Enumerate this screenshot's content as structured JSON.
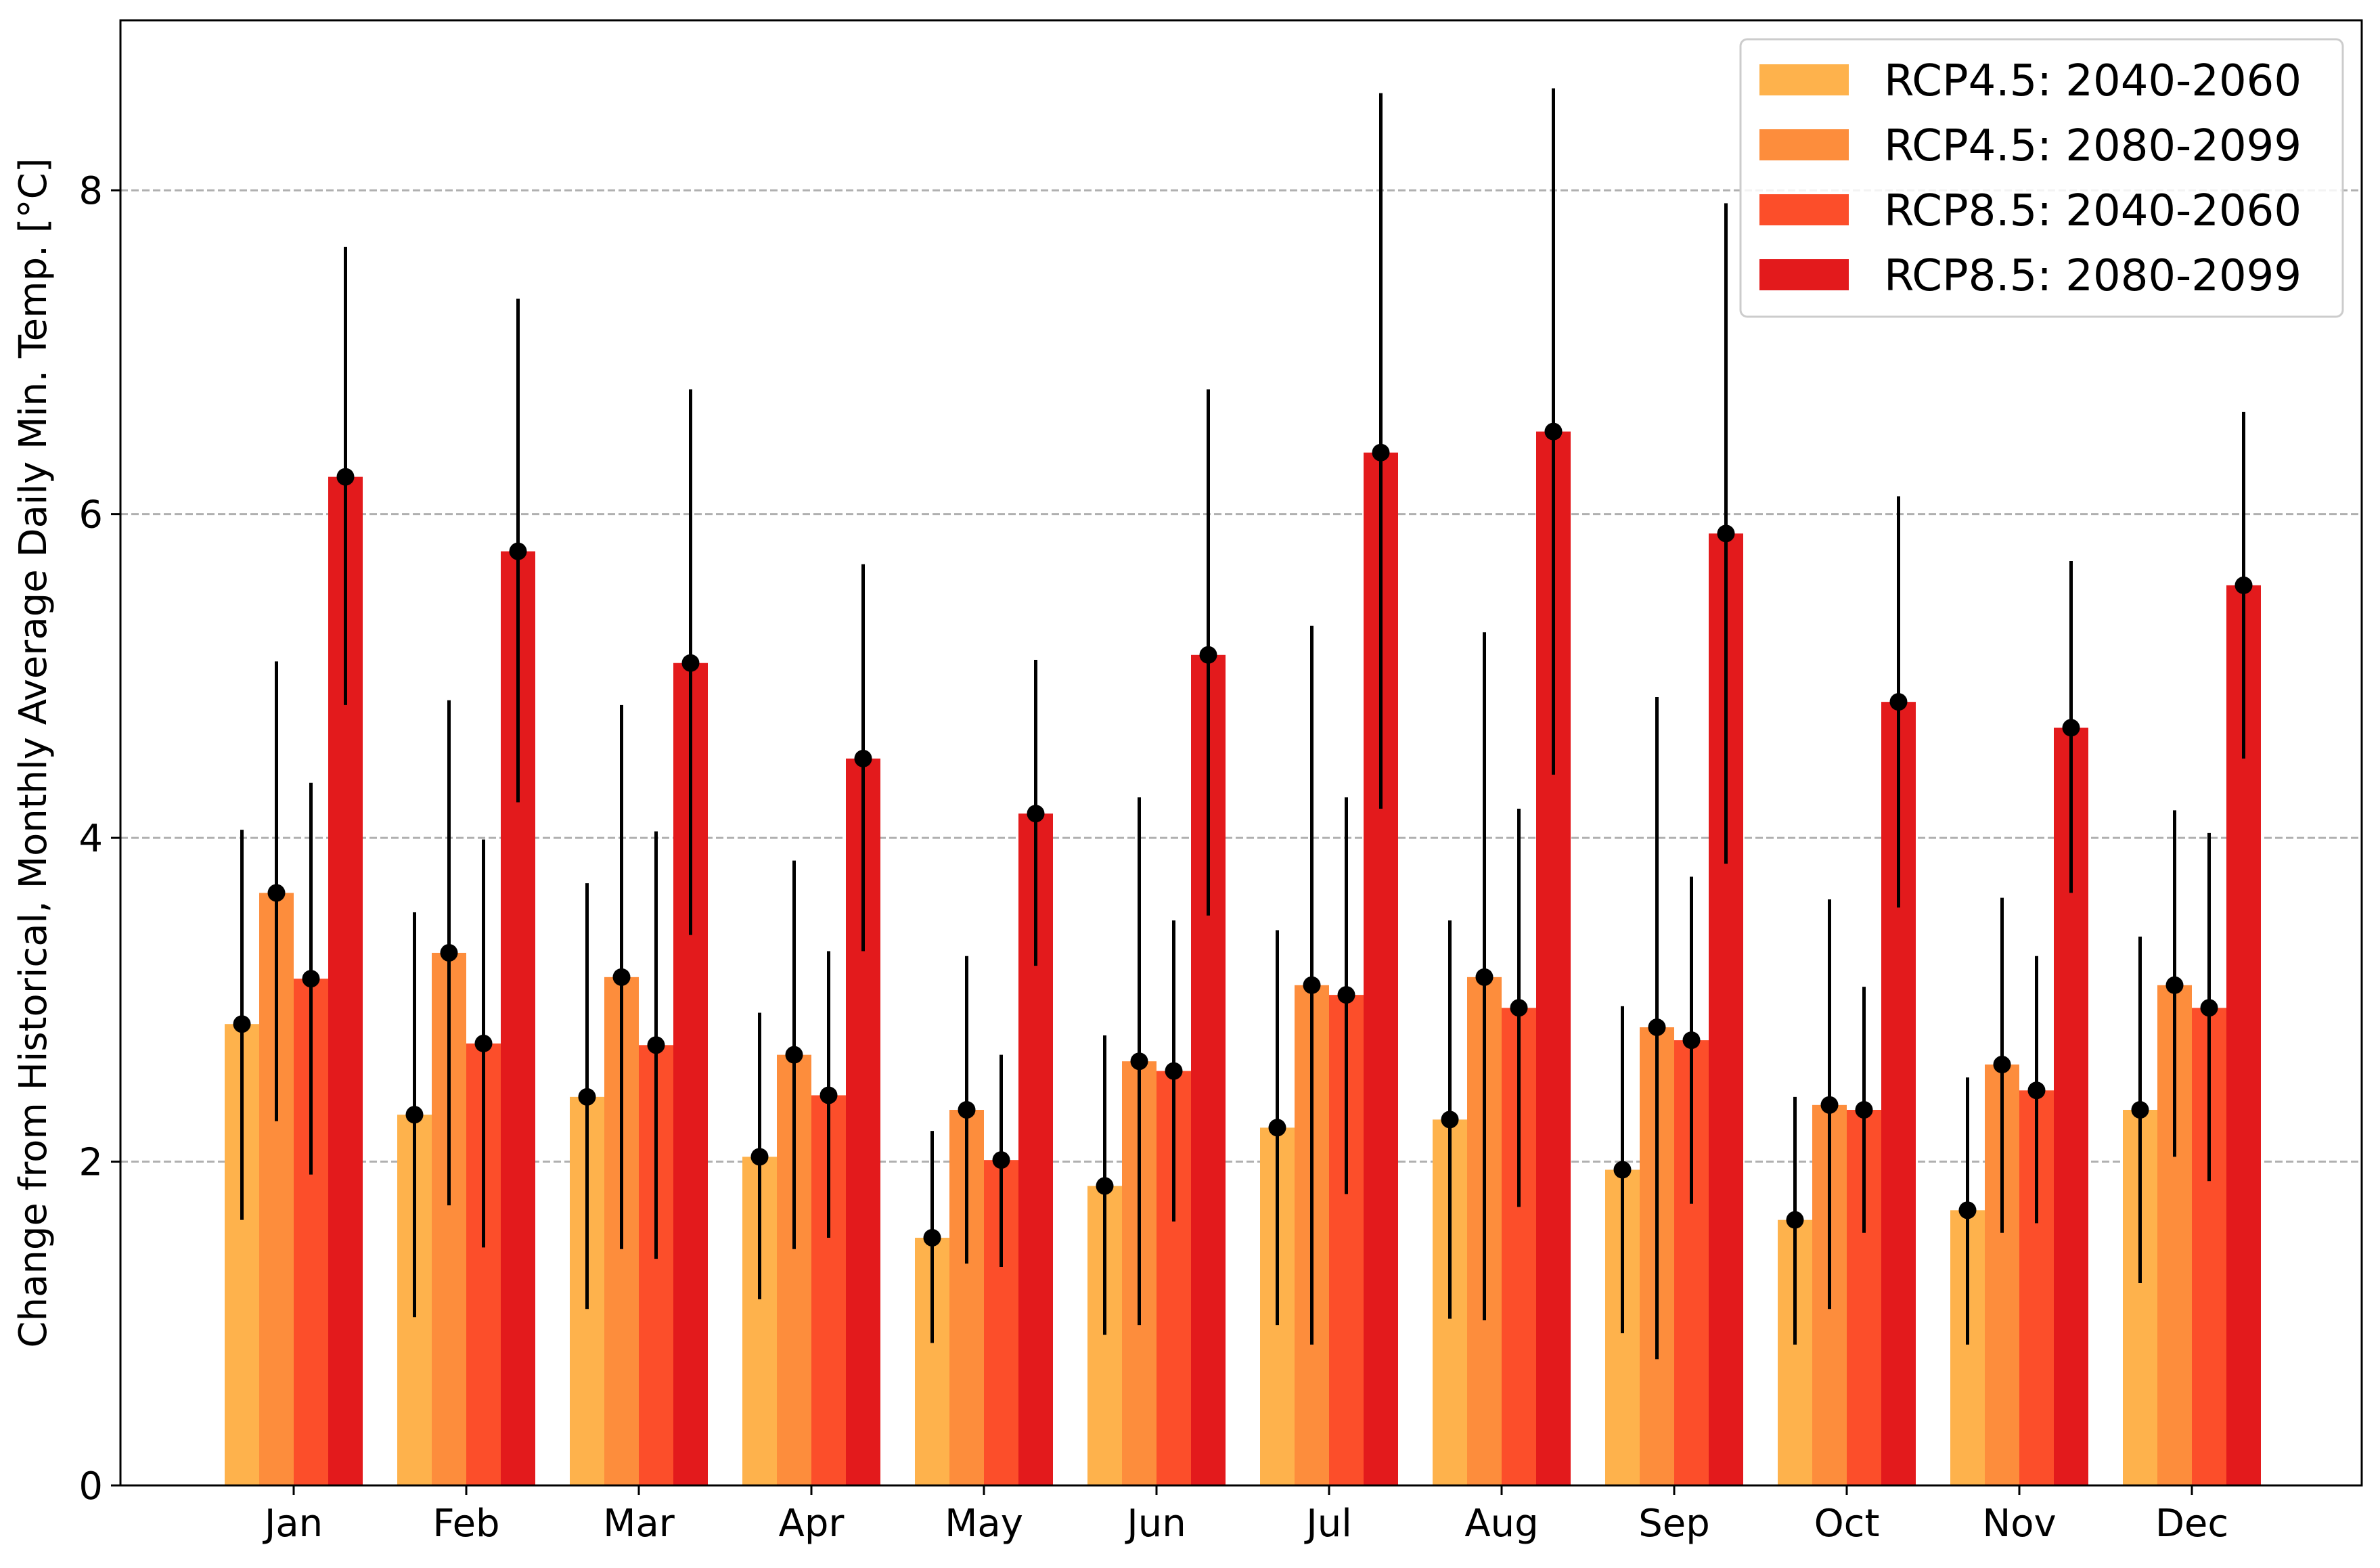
{
  "chart_data": {
    "type": "bar",
    "title": "",
    "xlabel": "",
    "ylabel": "Change from Historical, Monthly Average Daily Min. Temp. [°C]",
    "ylim": [
      0,
      9.05
    ],
    "yticks": [
      0,
      2,
      4,
      6,
      8
    ],
    "grid": "y-dashed",
    "legend_position": "top-right",
    "categories": [
      "Jan",
      "Feb",
      "Mar",
      "Apr",
      "May",
      "Jun",
      "Jul",
      "Aug",
      "Sep",
      "Oct",
      "Nov",
      "Dec"
    ],
    "series": [
      {
        "name": "RCP4.5: 2040-2060",
        "color": "#feb24c",
        "values": [
          2.85,
          2.29,
          2.4,
          2.03,
          1.53,
          1.85,
          2.21,
          2.26,
          1.95,
          1.64,
          1.7,
          2.32
        ],
        "err_low": [
          1.64,
          1.04,
          1.09,
          1.15,
          0.88,
          0.93,
          0.99,
          1.03,
          0.94,
          0.87,
          0.87,
          1.25
        ],
        "err_high": [
          4.05,
          3.54,
          3.72,
          2.92,
          2.19,
          2.78,
          3.43,
          3.49,
          2.96,
          2.4,
          2.52,
          3.39
        ]
      },
      {
        "name": "RCP4.5: 2080-2099",
        "color": "#fd8d3c",
        "values": [
          3.66,
          3.29,
          3.14,
          2.66,
          2.32,
          2.62,
          3.09,
          3.14,
          2.83,
          2.35,
          2.6,
          3.09
        ],
        "err_low": [
          2.25,
          1.73,
          1.46,
          1.46,
          1.37,
          0.99,
          0.87,
          1.02,
          0.78,
          1.09,
          1.56,
          2.03
        ],
        "err_high": [
          5.09,
          4.85,
          4.82,
          3.86,
          3.27,
          4.25,
          5.31,
          5.27,
          4.87,
          3.62,
          3.63,
          4.17
        ]
      },
      {
        "name": "RCP8.5: 2040-2060",
        "color": "#fc4e2a",
        "values": [
          3.13,
          2.73,
          2.72,
          2.41,
          2.01,
          2.56,
          3.03,
          2.95,
          2.75,
          2.32,
          2.44,
          2.95
        ],
        "err_low": [
          1.92,
          1.47,
          1.4,
          1.53,
          1.35,
          1.63,
          1.8,
          1.72,
          1.74,
          1.56,
          1.62,
          1.88
        ],
        "err_high": [
          4.34,
          3.99,
          4.04,
          3.3,
          2.66,
          3.49,
          4.25,
          4.18,
          3.76,
          3.08,
          3.27,
          4.03
        ]
      },
      {
        "name": "RCP8.5: 2080-2099",
        "color": "#e31a1c",
        "values": [
          6.23,
          5.77,
          5.08,
          4.49,
          4.15,
          5.13,
          6.38,
          6.51,
          5.88,
          4.84,
          4.68,
          5.56
        ],
        "err_low": [
          4.82,
          4.22,
          3.4,
          3.3,
          3.21,
          3.52,
          4.18,
          4.39,
          3.84,
          3.57,
          3.66,
          4.49
        ],
        "err_high": [
          7.65,
          7.33,
          6.77,
          5.69,
          5.1,
          6.77,
          8.6,
          8.63,
          7.92,
          6.11,
          5.71,
          6.63
        ]
      }
    ]
  }
}
